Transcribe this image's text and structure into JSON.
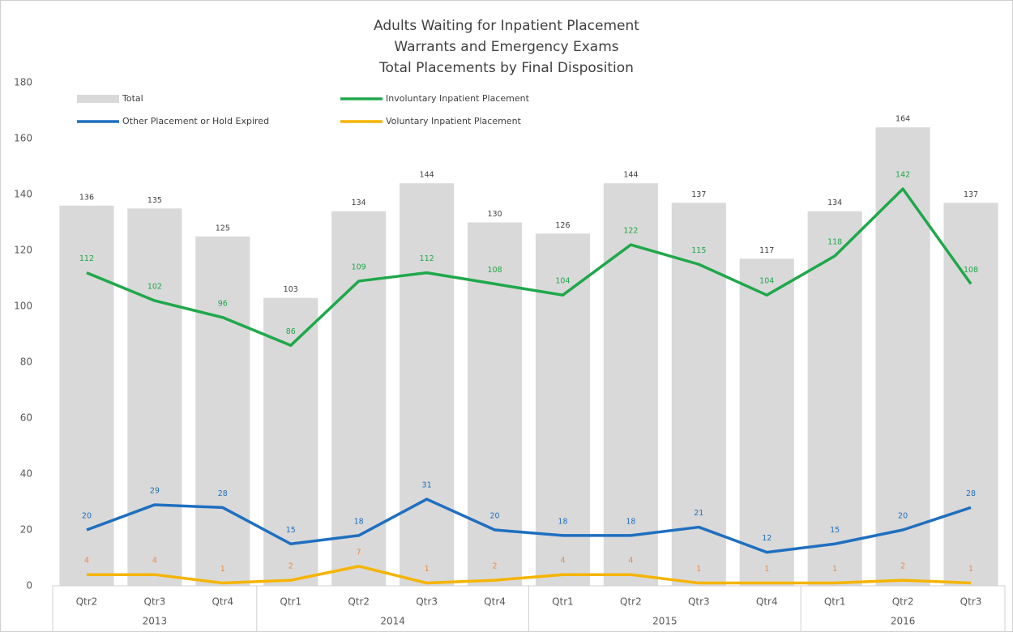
{
  "chart_data": {
    "type": "combo",
    "title": [
      "Adults Waiting for Inpatient Placement",
      "Warrants and Emergency Exams",
      "Total Placements by Final Disposition"
    ],
    "groups": [
      {
        "name": "2013",
        "categories": [
          "Qtr2",
          "Qtr3",
          "Qtr4"
        ]
      },
      {
        "name": "2014",
        "categories": [
          "Qtr1",
          "Qtr2",
          "Qtr3",
          "Qtr4"
        ]
      },
      {
        "name": "2015",
        "categories": [
          "Qtr1",
          "Qtr2",
          "Qtr3",
          "Qtr4"
        ]
      },
      {
        "name": "2016",
        "categories": [
          "Qtr1",
          "Qtr2",
          "Qtr3"
        ]
      }
    ],
    "series": [
      {
        "name": "Total",
        "type": "bar",
        "color": "#d9d9d9",
        "label_color": "#404040",
        "values": [
          136,
          135,
          125,
          103,
          134,
          144,
          130,
          126,
          144,
          137,
          117,
          134,
          164,
          137
        ]
      },
      {
        "name": "Involuntary Inpatient Placement",
        "type": "line",
        "color": "#1fa84a",
        "label_color": "#1fa84a",
        "values": [
          112,
          102,
          96,
          86,
          109,
          112,
          108,
          104,
          122,
          115,
          104,
          118,
          142,
          108
        ]
      },
      {
        "name": "Other Placement or Hold Expired",
        "type": "line",
        "color": "#1f6fbf",
        "label_color": "#1f6fbf",
        "values": [
          20,
          29,
          28,
          15,
          18,
          31,
          20,
          18,
          18,
          21,
          12,
          15,
          20,
          28
        ]
      },
      {
        "name": "Voluntary Inpatient Placement",
        "type": "line",
        "color": "#f5b400",
        "label_color": "#f08a3c",
        "values": [
          4,
          4,
          1,
          2,
          7,
          1,
          2,
          4,
          4,
          1,
          1,
          1,
          2,
          1
        ]
      }
    ],
    "ylim": [
      0,
      180
    ],
    "yticks": [
      0,
      20,
      40,
      60,
      80,
      100,
      120,
      140,
      160,
      180
    ],
    "grid": false
  }
}
